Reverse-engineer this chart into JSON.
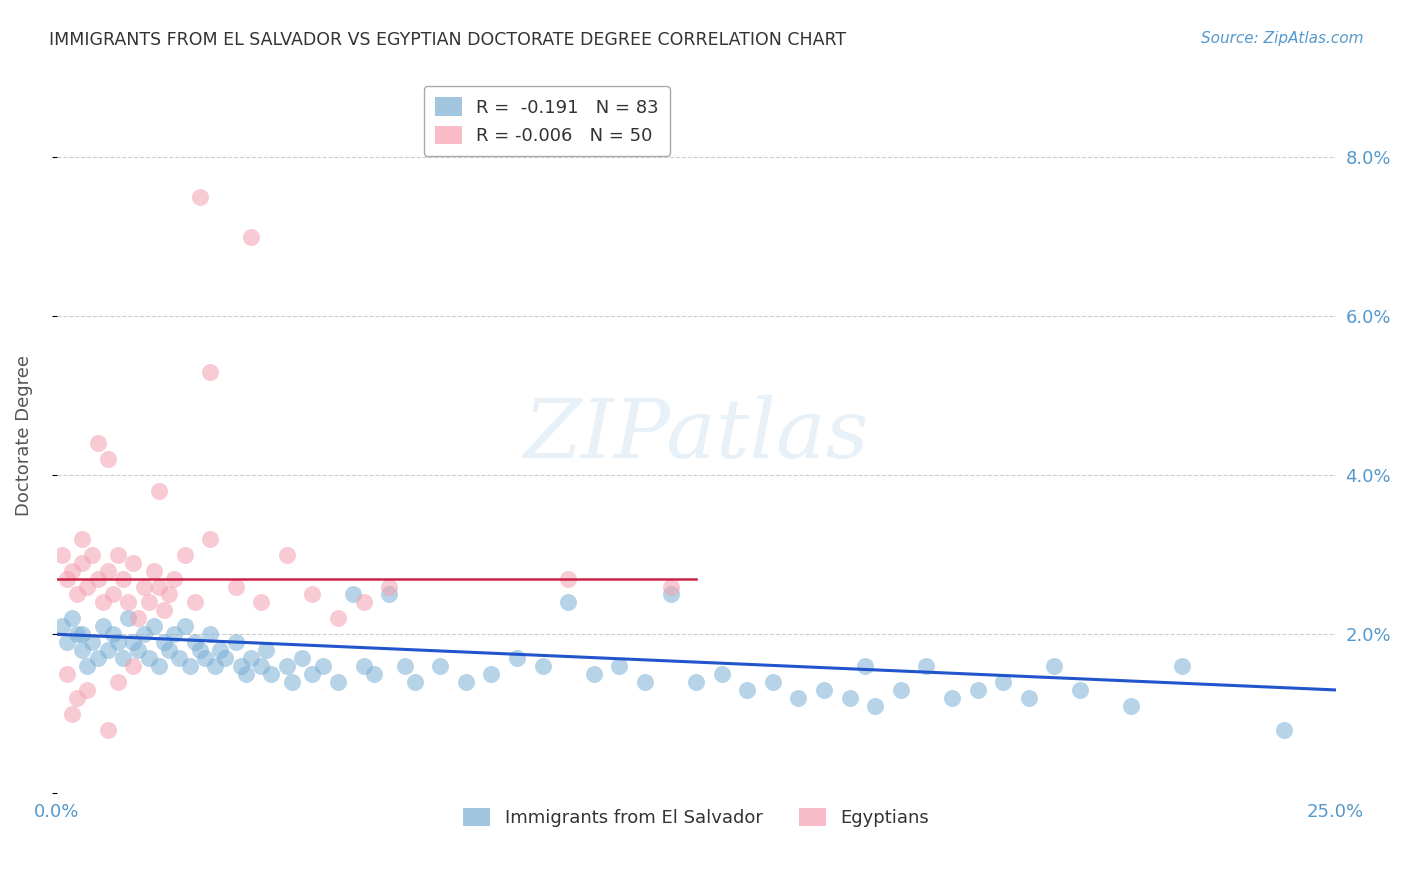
{
  "title": "IMMIGRANTS FROM EL SALVADOR VS EGYPTIAN DOCTORATE DEGREE CORRELATION CHART",
  "source": "Source: ZipAtlas.com",
  "ylabel": "Doctorate Degree",
  "x_min": 0.0,
  "x_max": 0.25,
  "y_min": 0.0,
  "y_max": 0.09,
  "y_ticks": [
    0.0,
    0.02,
    0.04,
    0.06,
    0.08
  ],
  "y_tick_labels_right": [
    "",
    "2.0%",
    "4.0%",
    "6.0%",
    "8.0%"
  ],
  "watermark_text": "ZIPatlas",
  "blue_color": "#7bafd4",
  "pink_color": "#f4a0b0",
  "blue_line_color": "#2255cc",
  "pink_line_color": "#cc2244",
  "axis_color": "#5599cc",
  "grid_color": "#cccccc",
  "blue_scatter": [
    [
      0.001,
      0.021
    ],
    [
      0.002,
      0.019
    ],
    [
      0.003,
      0.022
    ],
    [
      0.004,
      0.02
    ],
    [
      0.005,
      0.018
    ],
    [
      0.005,
      0.02
    ],
    [
      0.006,
      0.016
    ],
    [
      0.007,
      0.019
    ],
    [
      0.008,
      0.017
    ],
    [
      0.009,
      0.021
    ],
    [
      0.01,
      0.018
    ],
    [
      0.011,
      0.02
    ],
    [
      0.012,
      0.019
    ],
    [
      0.013,
      0.017
    ],
    [
      0.014,
      0.022
    ],
    [
      0.015,
      0.019
    ],
    [
      0.016,
      0.018
    ],
    [
      0.017,
      0.02
    ],
    [
      0.018,
      0.017
    ],
    [
      0.019,
      0.021
    ],
    [
      0.02,
      0.016
    ],
    [
      0.021,
      0.019
    ],
    [
      0.022,
      0.018
    ],
    [
      0.023,
      0.02
    ],
    [
      0.024,
      0.017
    ],
    [
      0.025,
      0.021
    ],
    [
      0.026,
      0.016
    ],
    [
      0.027,
      0.019
    ],
    [
      0.028,
      0.018
    ],
    [
      0.029,
      0.017
    ],
    [
      0.03,
      0.02
    ],
    [
      0.031,
      0.016
    ],
    [
      0.032,
      0.018
    ],
    [
      0.033,
      0.017
    ],
    [
      0.035,
      0.019
    ],
    [
      0.036,
      0.016
    ],
    [
      0.037,
      0.015
    ],
    [
      0.038,
      0.017
    ],
    [
      0.04,
      0.016
    ],
    [
      0.041,
      0.018
    ],
    [
      0.042,
      0.015
    ],
    [
      0.045,
      0.016
    ],
    [
      0.046,
      0.014
    ],
    [
      0.048,
      0.017
    ],
    [
      0.05,
      0.015
    ],
    [
      0.052,
      0.016
    ],
    [
      0.055,
      0.014
    ],
    [
      0.058,
      0.025
    ],
    [
      0.06,
      0.016
    ],
    [
      0.062,
      0.015
    ],
    [
      0.065,
      0.025
    ],
    [
      0.068,
      0.016
    ],
    [
      0.07,
      0.014
    ],
    [
      0.075,
      0.016
    ],
    [
      0.08,
      0.014
    ],
    [
      0.085,
      0.015
    ],
    [
      0.09,
      0.017
    ],
    [
      0.095,
      0.016
    ],
    [
      0.1,
      0.024
    ],
    [
      0.105,
      0.015
    ],
    [
      0.11,
      0.016
    ],
    [
      0.115,
      0.014
    ],
    [
      0.12,
      0.025
    ],
    [
      0.125,
      0.014
    ],
    [
      0.13,
      0.015
    ],
    [
      0.135,
      0.013
    ],
    [
      0.14,
      0.014
    ],
    [
      0.145,
      0.012
    ],
    [
      0.15,
      0.013
    ],
    [
      0.155,
      0.012
    ],
    [
      0.158,
      0.016
    ],
    [
      0.16,
      0.011
    ],
    [
      0.165,
      0.013
    ],
    [
      0.17,
      0.016
    ],
    [
      0.175,
      0.012
    ],
    [
      0.18,
      0.013
    ],
    [
      0.185,
      0.014
    ],
    [
      0.19,
      0.012
    ],
    [
      0.195,
      0.016
    ],
    [
      0.2,
      0.013
    ],
    [
      0.21,
      0.011
    ],
    [
      0.22,
      0.016
    ],
    [
      0.24,
      0.008
    ]
  ],
  "pink_scatter": [
    [
      0.001,
      0.03
    ],
    [
      0.002,
      0.027
    ],
    [
      0.003,
      0.028
    ],
    [
      0.004,
      0.025
    ],
    [
      0.005,
      0.029
    ],
    [
      0.005,
      0.032
    ],
    [
      0.006,
      0.026
    ],
    [
      0.007,
      0.03
    ],
    [
      0.008,
      0.027
    ],
    [
      0.009,
      0.024
    ],
    [
      0.01,
      0.028
    ],
    [
      0.011,
      0.025
    ],
    [
      0.012,
      0.03
    ],
    [
      0.013,
      0.027
    ],
    [
      0.014,
      0.024
    ],
    [
      0.015,
      0.029
    ],
    [
      0.016,
      0.022
    ],
    [
      0.017,
      0.026
    ],
    [
      0.018,
      0.024
    ],
    [
      0.019,
      0.028
    ],
    [
      0.02,
      0.026
    ],
    [
      0.021,
      0.023
    ],
    [
      0.022,
      0.025
    ],
    [
      0.023,
      0.027
    ],
    [
      0.025,
      0.03
    ],
    [
      0.027,
      0.024
    ],
    [
      0.03,
      0.032
    ],
    [
      0.035,
      0.026
    ],
    [
      0.04,
      0.024
    ],
    [
      0.045,
      0.03
    ],
    [
      0.05,
      0.025
    ],
    [
      0.055,
      0.022
    ],
    [
      0.06,
      0.024
    ],
    [
      0.065,
      0.026
    ],
    [
      0.1,
      0.027
    ],
    [
      0.12,
      0.026
    ],
    [
      0.028,
      0.075
    ],
    [
      0.038,
      0.07
    ],
    [
      0.03,
      0.053
    ],
    [
      0.008,
      0.044
    ],
    [
      0.01,
      0.042
    ],
    [
      0.02,
      0.038
    ],
    [
      0.002,
      0.015
    ],
    [
      0.004,
      0.012
    ],
    [
      0.01,
      0.008
    ],
    [
      0.012,
      0.014
    ],
    [
      0.015,
      0.016
    ],
    [
      0.003,
      0.01
    ],
    [
      0.006,
      0.013
    ]
  ],
  "blue_line": {
    "x0": 0.0,
    "y0": 0.02,
    "x1": 0.25,
    "y1": 0.013
  },
  "pink_line": {
    "x0": 0.0,
    "y0": 0.027,
    "x1": 0.125,
    "y1": 0.027
  }
}
